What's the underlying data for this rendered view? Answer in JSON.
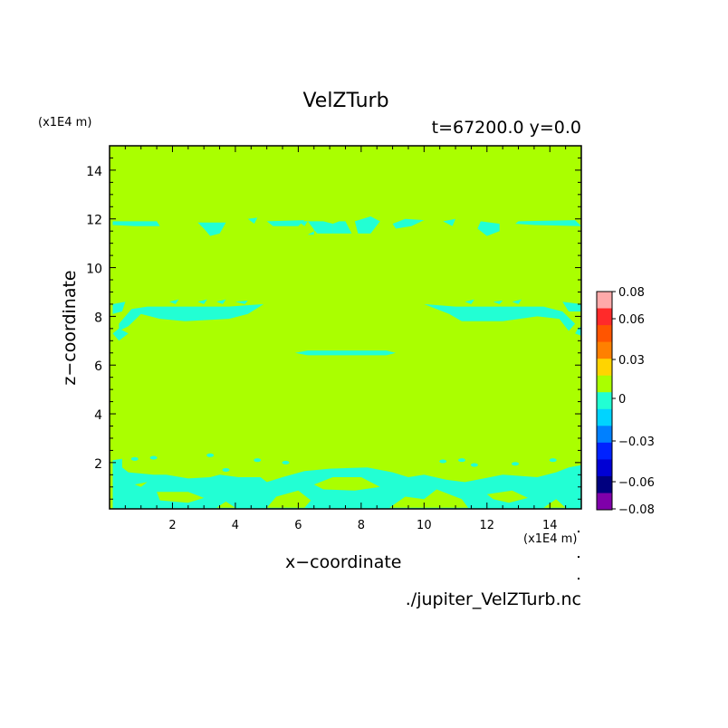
{
  "chart_data": {
    "type": "heatmap",
    "title": "VelZTurb",
    "subtitle": "t=67200.0 y=0.0",
    "xlabel": "x−coordinate",
    "ylabel": "z−coordinate",
    "x_unit": "(x1E4 m)",
    "y_unit": "(x1E4 m)",
    "xlim": [
      0,
      15
    ],
    "ylim": [
      0.1,
      15
    ],
    "x_ticks": [
      "2",
      "4",
      "6",
      "8",
      "10",
      "12",
      "14"
    ],
    "y_ticks": [
      "2",
      "4",
      "6",
      "8",
      "10",
      "12",
      "14"
    ],
    "source": "./jupiter_VelZTurb.nc",
    "background_level": "0 to 0.015",
    "background_color": "#aaff00",
    "anomaly_level": "-0.015 to 0",
    "anomaly_color": "#22ffd4",
    "regions": [
      {
        "level": -0.015,
        "z_band": "11.5-12.0",
        "desc": "patches along z=12 across domain"
      },
      {
        "level": -0.015,
        "z_band": "7.0-8.5",
        "desc": "bands near x=0-5 and x=10-15"
      },
      {
        "level": -0.015,
        "z_band": "6.4-6.6",
        "desc": "thin strip x=6-9"
      },
      {
        "level": -0.015,
        "z_band": "0.1-1.8",
        "desc": "wavy layer along bottom"
      }
    ],
    "colorbar": {
      "labels": [
        "0.08",
        "0.06",
        "0.03",
        "0",
        "−0.03",
        "−0.06",
        "−0.08"
      ],
      "colors": [
        "#ffaaaa",
        "#ff2a2a",
        "#ff5500",
        "#ff8000",
        "#ffd400",
        "#aaff00",
        "#22ffd4",
        "#00d4ff",
        "#0080ff",
        "#0022ff",
        "#0000d4",
        "#00007f",
        "#7f00aa"
      ]
    }
  }
}
